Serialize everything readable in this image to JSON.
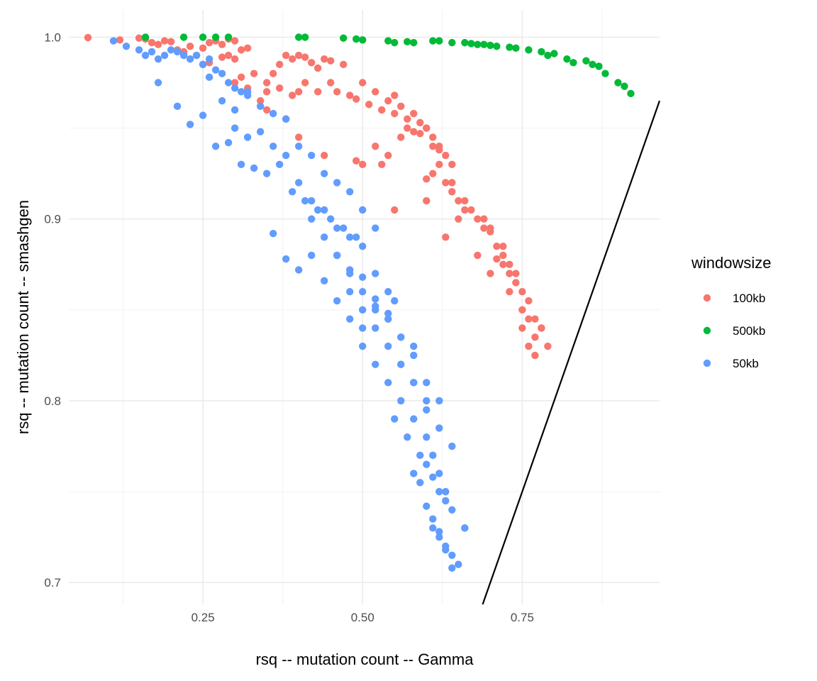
{
  "chart_data": {
    "type": "scatter",
    "title": "",
    "xlabel": "rsq -- mutation count -- Gamma",
    "ylabel": "rsq -- mutation count -- smashgen",
    "xlim": [
      0.04,
      0.965
    ],
    "ylim": [
      0.688,
      1.015
    ],
    "x_ticks": [
      0.25,
      0.5,
      0.75
    ],
    "x_tick_labels": [
      "0.25",
      "0.50",
      "0.75"
    ],
    "y_ticks": [
      0.7,
      0.8,
      0.9,
      1.0
    ],
    "y_tick_labels": [
      "0.7",
      "0.8",
      "0.9",
      "1.0"
    ],
    "grid": true,
    "legend": {
      "title": "windowsize",
      "placement": "right",
      "entries": [
        {
          "label": "100kb",
          "color": "#F8766D"
        },
        {
          "label": "500kb",
          "color": "#00BA38"
        },
        {
          "label": "50kb",
          "color": "#619CFF"
        }
      ]
    },
    "reference_line": {
      "type": "abline",
      "slope": 1,
      "intercept": 0,
      "color": "#000000"
    },
    "series": [
      {
        "name": "100kb",
        "color": "#F8766D",
        "x": [
          0.07,
          0.12,
          0.15,
          0.16,
          0.17,
          0.18,
          0.19,
          0.2,
          0.21,
          0.22,
          0.23,
          0.24,
          0.25,
          0.26,
          0.27,
          0.28,
          0.29,
          0.3,
          0.31,
          0.32,
          0.22,
          0.25,
          0.28,
          0.3,
          0.33,
          0.26,
          0.29,
          0.31,
          0.35,
          0.36,
          0.37,
          0.38,
          0.39,
          0.4,
          0.41,
          0.42,
          0.43,
          0.44,
          0.45,
          0.47,
          0.35,
          0.37,
          0.39,
          0.41,
          0.43,
          0.3,
          0.32,
          0.34,
          0.38,
          0.4,
          0.45,
          0.46,
          0.48,
          0.5,
          0.52,
          0.54,
          0.55,
          0.56,
          0.57,
          0.58,
          0.59,
          0.6,
          0.61,
          0.62,
          0.49,
          0.51,
          0.53,
          0.55,
          0.57,
          0.59,
          0.61,
          0.63,
          0.5,
          0.52,
          0.54,
          0.56,
          0.58,
          0.6,
          0.62,
          0.64,
          0.6,
          0.61,
          0.63,
          0.64,
          0.65,
          0.66,
          0.67,
          0.68,
          0.69,
          0.7,
          0.71,
          0.72,
          0.73,
          0.74,
          0.75,
          0.76,
          0.77,
          0.78,
          0.79,
          0.35,
          0.4,
          0.44,
          0.49,
          0.53,
          0.55,
          0.6,
          0.63,
          0.65,
          0.68,
          0.7,
          0.72,
          0.72,
          0.73,
          0.75,
          0.76,
          0.77,
          0.62,
          0.64,
          0.66,
          0.69,
          0.7,
          0.71,
          0.73,
          0.74,
          0.75,
          0.76,
          0.77,
          0.78
        ],
        "y": [
          0.9998,
          0.9985,
          0.9995,
          0.999,
          0.997,
          0.996,
          0.998,
          0.9975,
          0.993,
          0.992,
          0.995,
          0.99,
          0.994,
          0.997,
          0.998,
          0.996,
          0.999,
          0.998,
          0.993,
          0.994,
          0.991,
          0.985,
          0.989,
          0.988,
          0.98,
          0.986,
          0.99,
          0.978,
          0.975,
          0.98,
          0.985,
          0.99,
          0.988,
          0.99,
          0.989,
          0.986,
          0.983,
          0.988,
          0.987,
          0.985,
          0.97,
          0.972,
          0.968,
          0.975,
          0.97,
          0.975,
          0.972,
          0.965,
          0.955,
          0.97,
          0.975,
          0.97,
          0.968,
          0.975,
          0.97,
          0.965,
          0.968,
          0.962,
          0.955,
          0.958,
          0.953,
          0.95,
          0.945,
          0.94,
          0.966,
          0.963,
          0.96,
          0.958,
          0.95,
          0.947,
          0.94,
          0.935,
          0.93,
          0.94,
          0.935,
          0.945,
          0.948,
          0.95,
          0.938,
          0.93,
          0.922,
          0.925,
          0.92,
          0.915,
          0.91,
          0.905,
          0.905,
          0.9,
          0.895,
          0.893,
          0.885,
          0.88,
          0.875,
          0.87,
          0.86,
          0.855,
          0.845,
          0.84,
          0.83,
          0.96,
          0.945,
          0.935,
          0.932,
          0.93,
          0.905,
          0.91,
          0.89,
          0.9,
          0.88,
          0.87,
          0.885,
          0.875,
          0.86,
          0.85,
          0.845,
          0.835,
          0.93,
          0.92,
          0.91,
          0.9,
          0.895,
          0.878,
          0.87,
          0.865,
          0.84,
          0.83,
          0.825,
          0.84
        ]
      },
      {
        "name": "500kb",
        "color": "#00BA38",
        "x": [
          0.16,
          0.22,
          0.25,
          0.27,
          0.29,
          0.4,
          0.41,
          0.47,
          0.49,
          0.5,
          0.54,
          0.55,
          0.57,
          0.58,
          0.61,
          0.62,
          0.64,
          0.66,
          0.67,
          0.68,
          0.69,
          0.7,
          0.71,
          0.73,
          0.74,
          0.76,
          0.78,
          0.79,
          0.8,
          0.82,
          0.83,
          0.85,
          0.86,
          0.87,
          0.88,
          0.9,
          0.91,
          0.92
        ],
        "y": [
          1.0,
          1.0,
          1.0,
          1.0,
          1.0,
          1.0,
          1.0,
          0.9995,
          0.999,
          0.9985,
          0.998,
          0.997,
          0.9975,
          0.997,
          0.998,
          0.998,
          0.997,
          0.997,
          0.9965,
          0.996,
          0.996,
          0.9955,
          0.995,
          0.9945,
          0.994,
          0.993,
          0.992,
          0.99,
          0.991,
          0.988,
          0.986,
          0.987,
          0.985,
          0.984,
          0.98,
          0.975,
          0.973,
          0.969
        ]
      },
      {
        "name": "50kb",
        "color": "#619CFF",
        "x": [
          0.11,
          0.13,
          0.15,
          0.16,
          0.17,
          0.18,
          0.19,
          0.2,
          0.21,
          0.22,
          0.23,
          0.24,
          0.25,
          0.26,
          0.27,
          0.28,
          0.29,
          0.3,
          0.31,
          0.32,
          0.18,
          0.21,
          0.23,
          0.25,
          0.27,
          0.29,
          0.31,
          0.33,
          0.35,
          0.37,
          0.39,
          0.41,
          0.43,
          0.45,
          0.47,
          0.49,
          0.26,
          0.28,
          0.3,
          0.32,
          0.34,
          0.36,
          0.38,
          0.4,
          0.42,
          0.44,
          0.46,
          0.48,
          0.5,
          0.52,
          0.3,
          0.32,
          0.34,
          0.36,
          0.38,
          0.4,
          0.42,
          0.44,
          0.46,
          0.48,
          0.5,
          0.52,
          0.54,
          0.55,
          0.36,
          0.38,
          0.4,
          0.42,
          0.44,
          0.46,
          0.48,
          0.5,
          0.52,
          0.54,
          0.56,
          0.58,
          0.42,
          0.44,
          0.46,
          0.48,
          0.5,
          0.52,
          0.54,
          0.56,
          0.58,
          0.6,
          0.46,
          0.48,
          0.5,
          0.52,
          0.54,
          0.56,
          0.58,
          0.6,
          0.62,
          0.48,
          0.5,
          0.52,
          0.54,
          0.56,
          0.58,
          0.6,
          0.62,
          0.64,
          0.5,
          0.52,
          0.54,
          0.56,
          0.58,
          0.6,
          0.61,
          0.62,
          0.63,
          0.55,
          0.57,
          0.59,
          0.6,
          0.61,
          0.62,
          0.63,
          0.64,
          0.66,
          0.58,
          0.59,
          0.6,
          0.61,
          0.62,
          0.63,
          0.64,
          0.65,
          0.61,
          0.62,
          0.63,
          0.64,
          0.66
        ],
        "y": [
          0.998,
          0.995,
          0.993,
          0.99,
          0.992,
          0.988,
          0.99,
          0.993,
          0.992,
          0.99,
          0.988,
          0.99,
          0.985,
          0.988,
          0.982,
          0.98,
          0.975,
          0.972,
          0.97,
          0.968,
          0.975,
          0.962,
          0.952,
          0.957,
          0.94,
          0.942,
          0.93,
          0.928,
          0.925,
          0.93,
          0.915,
          0.91,
          0.905,
          0.9,
          0.895,
          0.89,
          0.978,
          0.965,
          0.96,
          0.97,
          0.962,
          0.958,
          0.955,
          0.94,
          0.935,
          0.925,
          0.92,
          0.915,
          0.905,
          0.895,
          0.95,
          0.945,
          0.948,
          0.94,
          0.935,
          0.92,
          0.91,
          0.905,
          0.895,
          0.89,
          0.885,
          0.87,
          0.86,
          0.855,
          0.892,
          0.878,
          0.872,
          0.88,
          0.866,
          0.855,
          0.845,
          0.84,
          0.85,
          0.845,
          0.835,
          0.83,
          0.9,
          0.89,
          0.88,
          0.87,
          0.86,
          0.852,
          0.845,
          0.82,
          0.81,
          0.8,
          0.88,
          0.872,
          0.868,
          0.856,
          0.848,
          0.835,
          0.825,
          0.81,
          0.8,
          0.86,
          0.85,
          0.84,
          0.83,
          0.82,
          0.81,
          0.795,
          0.785,
          0.775,
          0.83,
          0.82,
          0.81,
          0.8,
          0.79,
          0.78,
          0.77,
          0.76,
          0.75,
          0.79,
          0.78,
          0.77,
          0.765,
          0.758,
          0.75,
          0.745,
          0.74,
          0.73,
          0.76,
          0.755,
          0.742,
          0.735,
          0.728,
          0.72,
          0.715,
          0.71,
          0.73,
          0.725,
          0.718,
          0.708,
          0.73
        ]
      }
    ]
  }
}
